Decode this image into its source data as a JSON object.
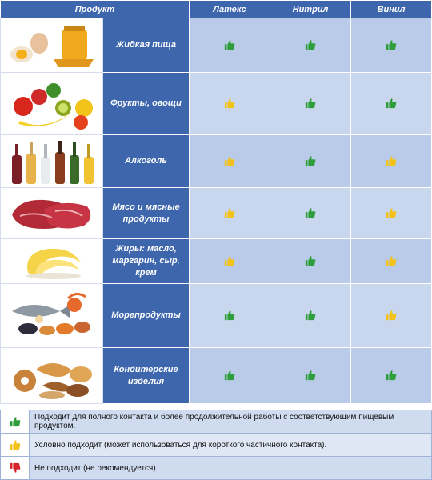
{
  "header": {
    "product": "Продукт",
    "latex": "Латекс",
    "nitrile": "Нитрил",
    "vinyl": "Винил"
  },
  "rows": [
    {
      "name": "Жидкая пища",
      "image": "eggs-honey-image",
      "latex": "green",
      "nitrile": "green",
      "vinyl": "green"
    },
    {
      "name": "Фрукты, овощи",
      "image": "fruits-vegetables-image",
      "latex": "yellow",
      "nitrile": "green",
      "vinyl": "green"
    },
    {
      "name": "Алкоголь",
      "image": "bottles-image",
      "latex": "yellow",
      "nitrile": "green",
      "vinyl": "yellow"
    },
    {
      "name": "Мясо и мясные продукты",
      "image": "meat-image",
      "latex": "yellow",
      "nitrile": "green",
      "vinyl": "yellow"
    },
    {
      "name": "Жиры: масло, маргарин, сыр, крем",
      "image": "butter-curl-image",
      "latex": "yellow",
      "nitrile": "green",
      "vinyl": "yellow"
    },
    {
      "name": "Морепродукты",
      "image": "seafood-image",
      "latex": "green",
      "nitrile": "green",
      "vinyl": "yellow"
    },
    {
      "name": "Кондитерские изделия",
      "image": "pastry-image",
      "latex": "green",
      "nitrile": "green",
      "vinyl": "green"
    }
  ],
  "legend": [
    {
      "icon": "green",
      "text": "Подходит для полного контакта и более продолжительной работы с соответствующим пищевым продуктом."
    },
    {
      "icon": "yellow",
      "text": "Условно подходит (может использоваться для короткого частичного контакта)."
    },
    {
      "icon": "red",
      "text": "Не подходит (не рекомендуется)."
    }
  ],
  "colors": {
    "header_blue": "#3d66ad",
    "cell_light": "#b9cbe9",
    "green": "#2e9e3a",
    "yellow": "#f2c21b",
    "red": "#d6262b"
  }
}
